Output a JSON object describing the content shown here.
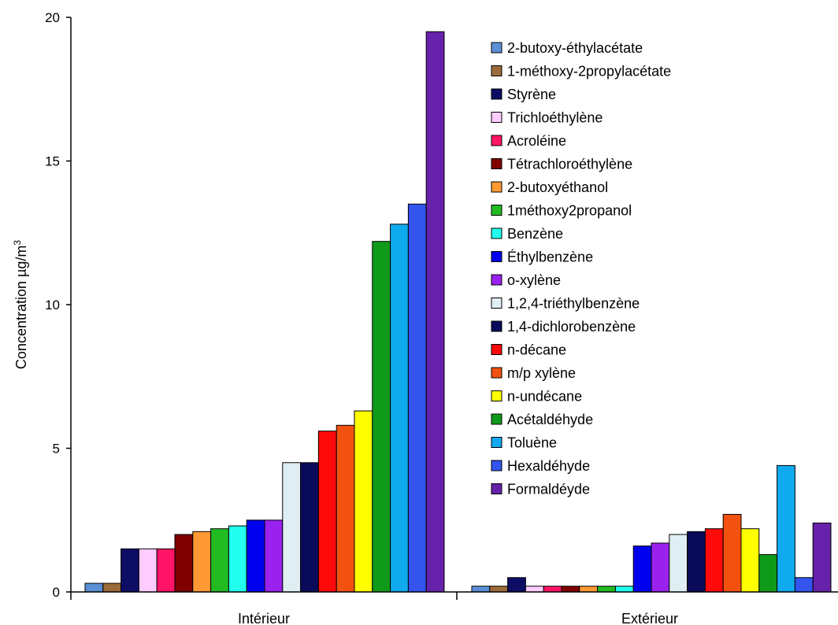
{
  "chart_data": {
    "type": "bar",
    "title": "",
    "xlabel": "",
    "ylabel": "Concentration  µg/m",
    "ylabel_sup": "3",
    "ylim": [
      0,
      20
    ],
    "yticks": [
      0,
      5,
      10,
      15,
      20
    ],
    "grid": false,
    "legend_position": "top-right",
    "categories": [
      "Intérieur",
      "Extérieur"
    ],
    "series": [
      {
        "name": "2-butoxy-éthylacétate",
        "color": "#5b8fd6",
        "values": [
          0.3,
          0.2
        ]
      },
      {
        "name": "1-méthoxy-2propylacétate",
        "color": "#9c6b3c",
        "values": [
          0.3,
          0.2
        ]
      },
      {
        "name": "Styrène",
        "color": "#0d0d66",
        "values": [
          1.5,
          0.5
        ]
      },
      {
        "name": "Trichloéthylène",
        "color": "#ffccff",
        "values": [
          1.5,
          0.2
        ]
      },
      {
        "name": "Acroléine",
        "color": "#ff1466",
        "values": [
          1.5,
          0.2
        ]
      },
      {
        "name": "Tétrachloroéthylène",
        "color": "#800000",
        "values": [
          2.0,
          0.2
        ]
      },
      {
        "name": "2-butoxyéthanol",
        "color": "#ff9933",
        "values": [
          2.1,
          0.2
        ]
      },
      {
        "name": "1méthoxy2propanol",
        "color": "#22bb22",
        "values": [
          2.2,
          0.2
        ]
      },
      {
        "name": "Benzène",
        "color": "#22ffee",
        "values": [
          2.3,
          0.2
        ]
      },
      {
        "name": "Éthylbenzène",
        "color": "#0000ee",
        "values": [
          2.5,
          1.6
        ]
      },
      {
        "name": "o-xylène",
        "color": "#9922ee",
        "values": [
          2.5,
          1.7
        ]
      },
      {
        "name": "1,2,4-triéthylbenzène",
        "color": "#dfeef2",
        "values": [
          4.5,
          2.0
        ]
      },
      {
        "name": "1,4-dichlorobenzène",
        "color": "#0a0a5a",
        "values": [
          4.5,
          2.1
        ]
      },
      {
        "name": "n-décane",
        "color": "#ff0a0a",
        "values": [
          5.6,
          2.2
        ]
      },
      {
        "name": "m/p xylène",
        "color": "#f2510f",
        "values": [
          5.8,
          2.7
        ]
      },
      {
        "name": "n-undécane",
        "color": "#ffff00",
        "values": [
          6.3,
          2.2
        ]
      },
      {
        "name": "Acétaldéhyde",
        "color": "#0f9a1a",
        "values": [
          12.2,
          1.3
        ]
      },
      {
        "name": "Toluène",
        "color": "#10aaee",
        "values": [
          12.8,
          4.4
        ]
      },
      {
        "name": "Hexaldéhyde",
        "color": "#3355ee",
        "values": [
          13.5,
          0.5
        ]
      },
      {
        "name": "Formaldéyde",
        "color": "#6622aa",
        "values": [
          19.5,
          2.4
        ]
      }
    ]
  }
}
